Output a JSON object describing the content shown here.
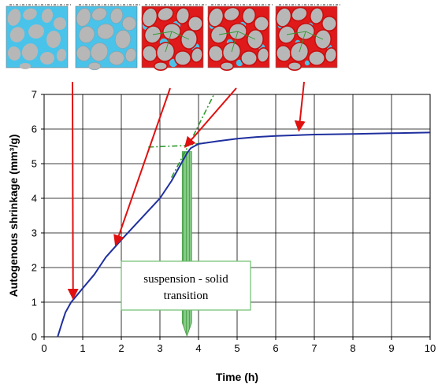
{
  "chart_data": {
    "type": "line",
    "title": "",
    "xlabel": "Time (h)",
    "ylabel": "Autogenous shrinkage (mm³/g)",
    "xlim": [
      0,
      10
    ],
    "ylim": [
      0,
      7
    ],
    "x_ticks": [
      0,
      1,
      2,
      3,
      4,
      5,
      6,
      7,
      8,
      9,
      10
    ],
    "y_ticks": [
      0,
      1,
      2,
      3,
      4,
      5,
      6,
      7
    ],
    "grid": true,
    "series": [
      {
        "color": "#1f2f9e",
        "points": [
          [
            0.35,
            0.0
          ],
          [
            0.45,
            0.35
          ],
          [
            0.55,
            0.7
          ],
          [
            0.7,
            1.0
          ],
          [
            0.85,
            1.2
          ],
          [
            1.0,
            1.4
          ],
          [
            1.3,
            1.8
          ],
          [
            1.6,
            2.3
          ],
          [
            2.0,
            2.8
          ],
          [
            2.5,
            3.4
          ],
          [
            3.0,
            4.0
          ],
          [
            3.3,
            4.5
          ],
          [
            3.5,
            4.9
          ],
          [
            3.7,
            5.3
          ],
          [
            3.8,
            5.45
          ],
          [
            4.0,
            5.57
          ],
          [
            4.5,
            5.65
          ],
          [
            5.0,
            5.72
          ],
          [
            5.5,
            5.77
          ],
          [
            6.0,
            5.8
          ],
          [
            7.0,
            5.84
          ],
          [
            8.0,
            5.86
          ],
          [
            9.0,
            5.88
          ],
          [
            10.0,
            5.9
          ]
        ]
      }
    ],
    "tangent_lines": {
      "color": "#2e9b2e",
      "lines": [
        {
          "points": [
            [
              2.7,
              5.48
            ],
            [
              3.6,
              5.52
            ],
            [
              4.3,
              5.62
            ]
          ]
        },
        {
          "points": [
            [
              3.3,
              4.6
            ],
            [
              3.75,
              5.55
            ],
            [
              4.4,
              7.0
            ]
          ]
        }
      ]
    },
    "transition_time": 3.7,
    "annotation": {
      "lines": [
        "suspension - solid",
        "transition"
      ]
    },
    "arrows": {
      "color": "#e01010",
      "targets": [
        [
          0.75,
          1.1
        ],
        [
          1.85,
          2.65
        ],
        [
          3.65,
          5.48
        ],
        [
          6.6,
          5.95
        ]
      ]
    },
    "microstructure_panels": {
      "background": "#49c3ea",
      "particle_color": "#b7b7b7",
      "bond_color": "#e01a1a",
      "panels": [
        {
          "stage": 1
        },
        {
          "stage": 2
        },
        {
          "stage": 3
        },
        {
          "stage": 4
        },
        {
          "stage": 5
        }
      ]
    }
  }
}
